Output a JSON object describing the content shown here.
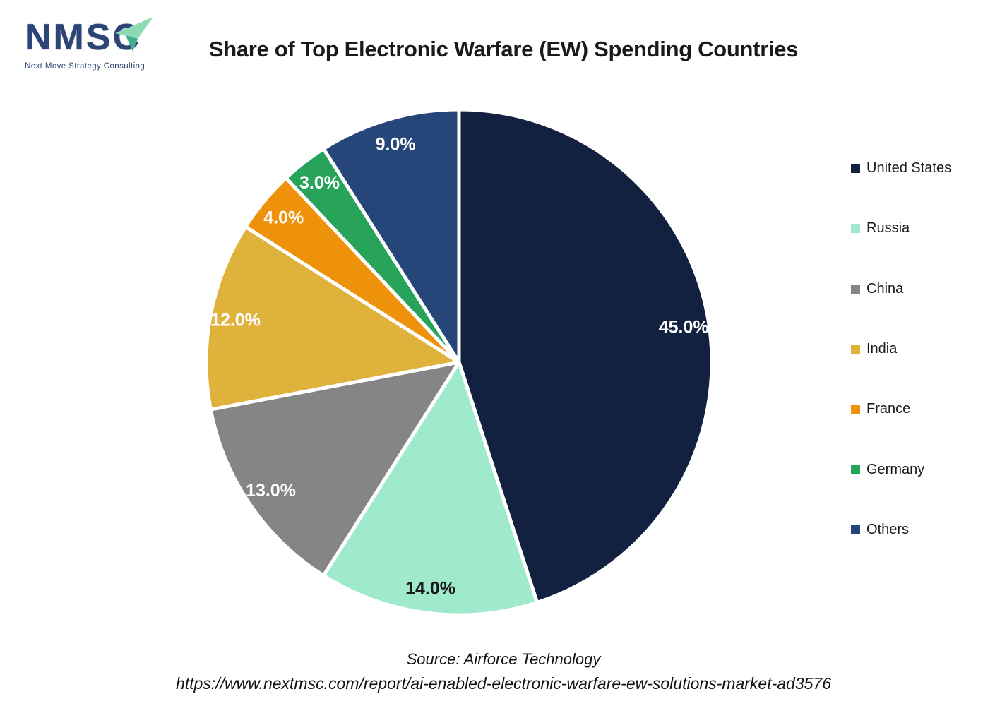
{
  "logo": {
    "acronym": "NMSC",
    "tagline": "Next Move Strategy Consulting",
    "text_color": "#2D4476",
    "arrow_light_color": "#8FD9B3",
    "arrow_dark_color": "#43AE8C"
  },
  "title": "Share of Top Electronic Warfare (EW) Spending Countries",
  "chart_data": {
    "type": "pie",
    "title": "Share of Top Electronic Warfare (EW) Spending Countries",
    "legend_position": "right",
    "start_angle_deg": 0,
    "direction": "clockwise",
    "units": "percent",
    "slices": [
      {
        "name": "United States",
        "value": 45.0,
        "label": "45.0%",
        "color": "#122140",
        "label_color": "#FFFFFF"
      },
      {
        "name": "Russia",
        "value": 14.0,
        "label": "14.0%",
        "color": "#9FEACC",
        "label_color": "#1A1A1A"
      },
      {
        "name": "China",
        "value": 13.0,
        "label": "13.0%",
        "color": "#858585",
        "label_color": "#FFFFFF"
      },
      {
        "name": "India",
        "value": 12.0,
        "label": "12.0%",
        "color": "#DFB23C",
        "label_color": "#FFFFFF"
      },
      {
        "name": "France",
        "value": 4.0,
        "label": "4.0%",
        "color": "#EF920B",
        "label_color": "#FFFFFF"
      },
      {
        "name": "Germany",
        "value": 3.0,
        "label": "3.0%",
        "color": "#28A45A",
        "label_color": "#FFFFFF"
      },
      {
        "name": "Others",
        "value": 9.0,
        "label": "9.0%",
        "color": "#264679",
        "label_color": "#FFFFFF"
      }
    ]
  },
  "source": {
    "line1": "Source: Airforce Technology",
    "line2": "https://www.nextmsc.com/report/ai-enabled-electronic-warfare-ew-solutions-market-ad3576"
  }
}
